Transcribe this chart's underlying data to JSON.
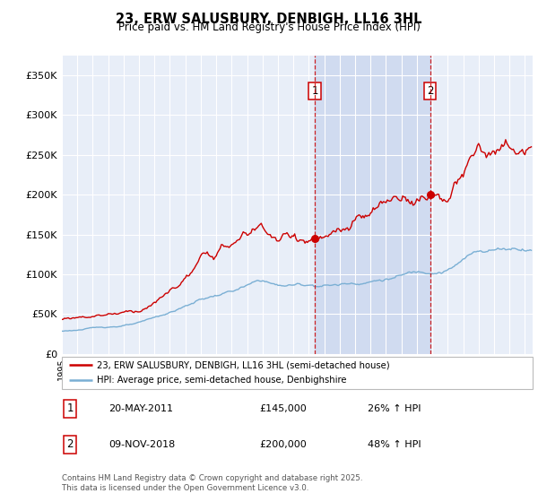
{
  "title": "23, ERW SALUSBURY, DENBIGH, LL16 3HL",
  "subtitle": "Price paid vs. HM Land Registry's House Price Index (HPI)",
  "ylabel_ticks": [
    "£0",
    "£50K",
    "£100K",
    "£150K",
    "£200K",
    "£250K",
    "£300K",
    "£350K"
  ],
  "ytick_vals": [
    0,
    50000,
    100000,
    150000,
    200000,
    250000,
    300000,
    350000
  ],
  "ylim": [
    0,
    375000
  ],
  "xlim_start": 1995.0,
  "xlim_end": 2025.5,
  "red_color": "#cc0000",
  "blue_color": "#7aafd4",
  "background_plot": "#e8eef8",
  "background_highlight": "#d0dbf0",
  "grid_color": "#ffffff",
  "sale1_x": 2011.38,
  "sale1_y": 145000,
  "sale2_x": 2018.86,
  "sale2_y": 200000,
  "legend_line1": "23, ERW SALUSBURY, DENBIGH, LL16 3HL (semi-detached house)",
  "legend_line2": "HPI: Average price, semi-detached house, Denbighshire",
  "annotation1_date": "20-MAY-2011",
  "annotation1_price": "£145,000",
  "annotation1_hpi": "26% ↑ HPI",
  "annotation2_date": "09-NOV-2018",
  "annotation2_price": "£200,000",
  "annotation2_hpi": "48% ↑ HPI",
  "footer": "Contains HM Land Registry data © Crown copyright and database right 2025.\nThis data is licensed under the Open Government Licence v3.0."
}
